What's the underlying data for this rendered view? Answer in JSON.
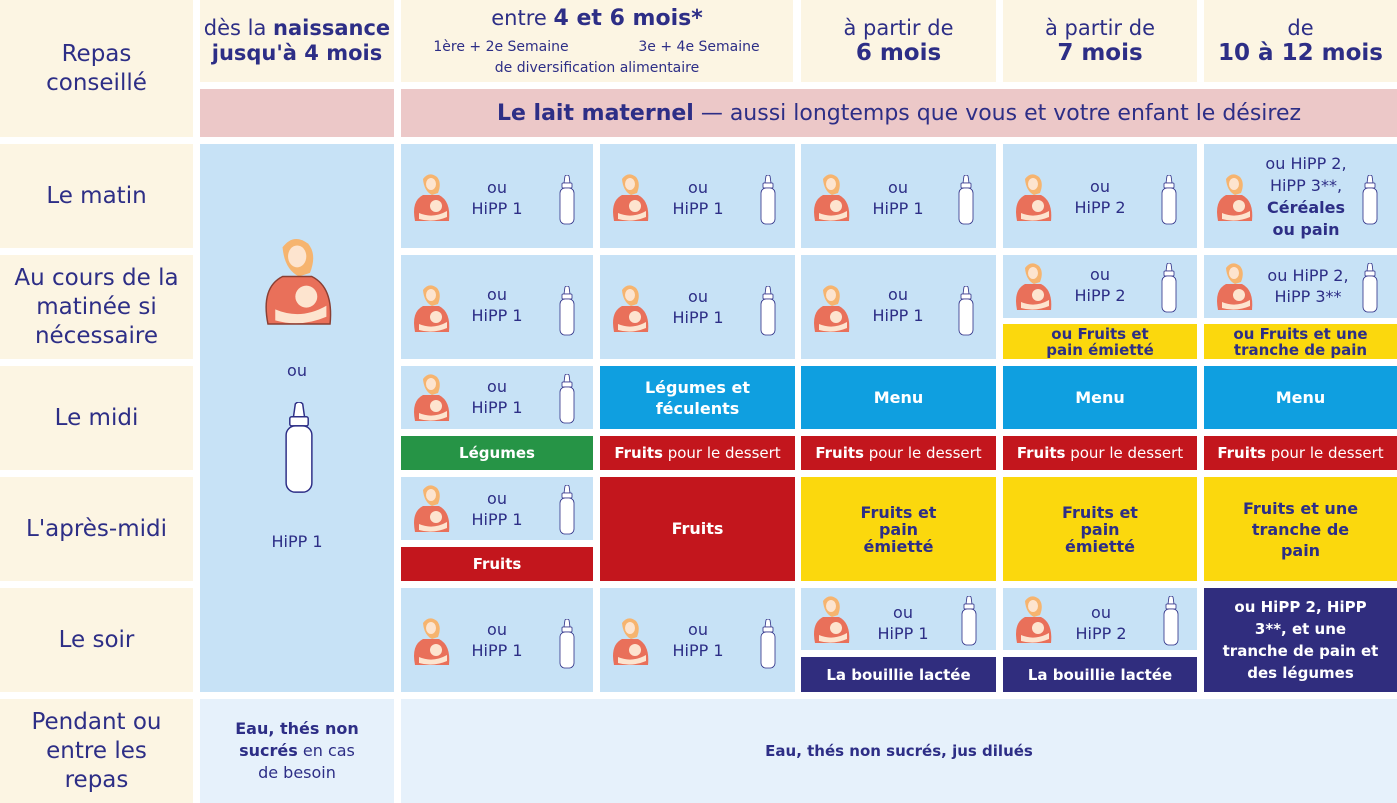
{
  "header": {
    "corner": "Repas conseillé",
    "col1": {
      "prefix": "dès la ",
      "bold": "naissance",
      "line2": "jusqu'à 4 mois"
    },
    "col2": {
      "prefix": "entre ",
      "bold": "4 et 6 mois*",
      "week1": "1ère + 2e Semaine",
      "week2": "3e + 4e Semaine",
      "diversification": "de diversification alimentaire"
    },
    "col3": {
      "line1": "à partir de",
      "bold": "6 mois"
    },
    "col4": {
      "line1": "à partir de",
      "bold": "7 mois"
    },
    "col5": {
      "line1": "de",
      "bold": "10 à 12 mois"
    }
  },
  "breastmilk_banner": {
    "bold": "Le lait maternel",
    "rest": " — aussi longtemps que vous et votre enfant le désirez"
  },
  "rows": {
    "matin": "Le matin",
    "matinee": "Au cours de la matinée si nécessaire",
    "midi": "Le midi",
    "apresmidi": "L'après-midi",
    "soir": "Le soir",
    "pendant": "Pendant ou entre les repas"
  },
  "newborn": {
    "ou": "ou",
    "hipp": "HiPP 1"
  },
  "labels": {
    "ou": "ou",
    "hipp1": "HiPP 1",
    "hipp2": "HiPP 2",
    "matin_c5": "ou HiPP 2, HiPP 3**, ",
    "matin_c5_bold": "Céréales",
    "matin_c5_end": "ou pain",
    "matinee_c5": "ou HiPP 2, HiPP 3**",
    "fruits_pain_emiette": "ou Fruits et pain émietté",
    "fruits_tranche": "ou Fruits et une tranche de pain",
    "legumes_feculents": "Légumes et féculents",
    "menu": "Menu",
    "legumes": "Légumes",
    "fruits_dessert_bold": "Fruits",
    "fruits_dessert_rest": " pour le dessert",
    "fruits": "Fruits",
    "fruits_et_pain": "Fruits et pain émietté",
    "fruits_une_tranche": "Fruits et une tranche de pain",
    "bouillie": "La bouillie lactée",
    "soir_c5": "ou HiPP 2, HiPP 3**, et une tranche de pain et des légumes",
    "eau_c1_bold": "Eau, thés non sucrés",
    "eau_c1_rest": " en cas de besoin",
    "eau_all": "Eau, thés non sucrés, jus dilués"
  },
  "colors": {
    "cream": "#fcf5e3",
    "blue": "#c7e2f6",
    "pink": "#ecc8c8",
    "cyan": "#0f9fe0",
    "red": "#c3161d",
    "green": "#269446",
    "yellow": "#fbd80d",
    "navy": "#302d7e",
    "text": "#2d2e86"
  }
}
